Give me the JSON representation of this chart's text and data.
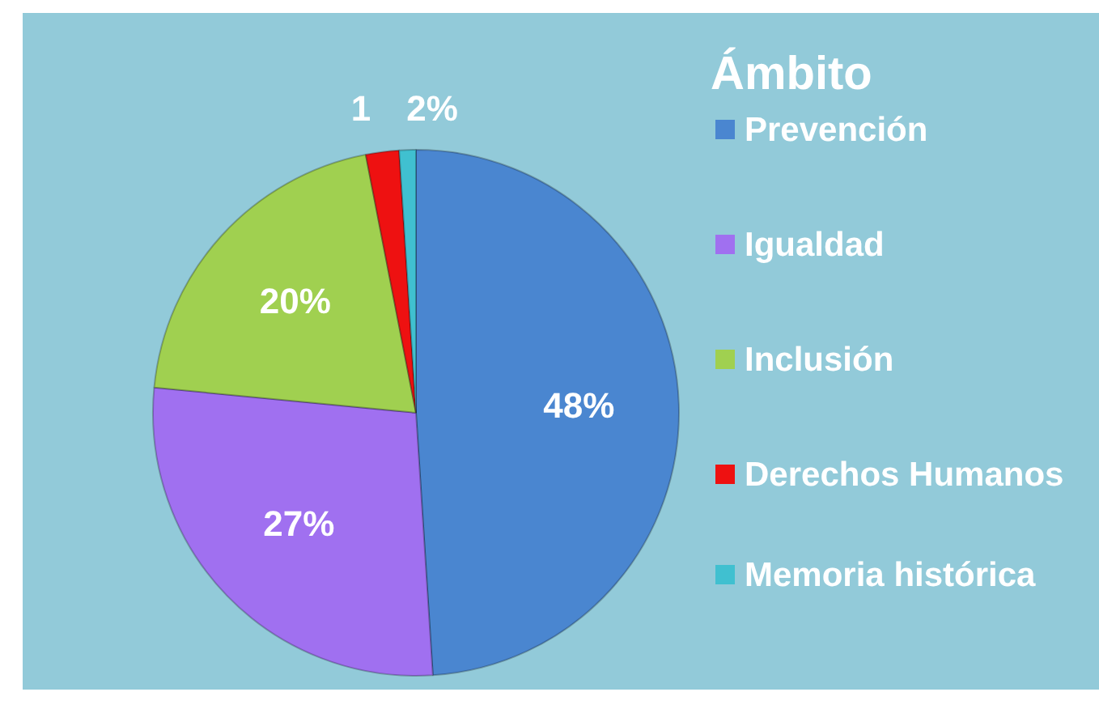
{
  "chart_data": {
    "type": "pie",
    "legend_title": "Ámbito",
    "categories": [
      "Prevención",
      "Igualdad",
      "Inclusión",
      "Derechos Humanos",
      "Memoria histórica"
    ],
    "values": [
      48,
      27,
      20,
      2,
      1
    ],
    "colors": [
      "#4a86d0",
      "#a070f0",
      "#a0d050",
      "#ee1111",
      "#40c0d0"
    ],
    "value_labels": [
      "48%",
      "27%",
      "20%",
      "2%",
      "1"
    ],
    "legend": "right"
  }
}
